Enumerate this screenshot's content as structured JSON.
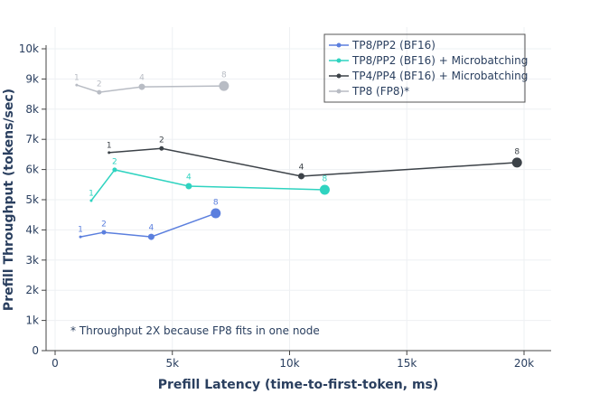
{
  "chart_data": {
    "type": "line",
    "xlabel": "Prefill Latency (time-to-first-token, ms)",
    "ylabel": "Prefill Throughput (tokens/sec)",
    "xlim": [
      -500,
      21000
    ],
    "ylim": [
      0,
      10000
    ],
    "x_ticks": [
      0,
      5000,
      10000,
      15000,
      20000
    ],
    "x_tick_labels": [
      "0",
      "5k",
      "10k",
      "15k",
      "20k"
    ],
    "y_ticks": [
      0,
      1000,
      2000,
      3000,
      4000,
      5000,
      6000,
      7000,
      8000,
      9000,
      10000
    ],
    "y_tick_labels": [
      "0",
      "1k",
      "2k",
      "3k",
      "4k",
      "5k",
      "6k",
      "7k",
      "8k",
      "9k",
      "10k"
    ],
    "grid": true,
    "legend_position": "top-right",
    "annotation": "* Throughput 2X because FP8 fits in one node",
    "series": [
      {
        "name": "TP8/PP2 (BF16)",
        "color": "#5b7fde",
        "x": [
          1080,
          2080,
          4100,
          6850
        ],
        "y": [
          3770,
          3920,
          3770,
          4550
        ],
        "labels": [
          "1",
          "2",
          "4",
          "8"
        ]
      },
      {
        "name": "TP8/PP2 (BF16) + Microbatching",
        "color": "#2fd3c0",
        "x": [
          1540,
          2540,
          5700,
          11500
        ],
        "y": [
          4970,
          5990,
          5450,
          5330
        ],
        "labels": [
          "1",
          "2",
          "4",
          "8"
        ]
      },
      {
        "name": "TP4/PP4 (BF16) + Microbatching",
        "color": "#3c4248",
        "x": [
          2300,
          4540,
          10500,
          19700
        ],
        "y": [
          6560,
          6700,
          5780,
          6230
        ],
        "labels": [
          "1",
          "2",
          "4",
          "8"
        ]
      },
      {
        "name": "TP8 (FP8)*",
        "color": "#b8bcc4",
        "x": [
          920,
          1880,
          3700,
          7200
        ],
        "y": [
          8800,
          8560,
          8740,
          8770
        ],
        "labels": [
          "1",
          "2",
          "4",
          "8"
        ]
      }
    ]
  }
}
